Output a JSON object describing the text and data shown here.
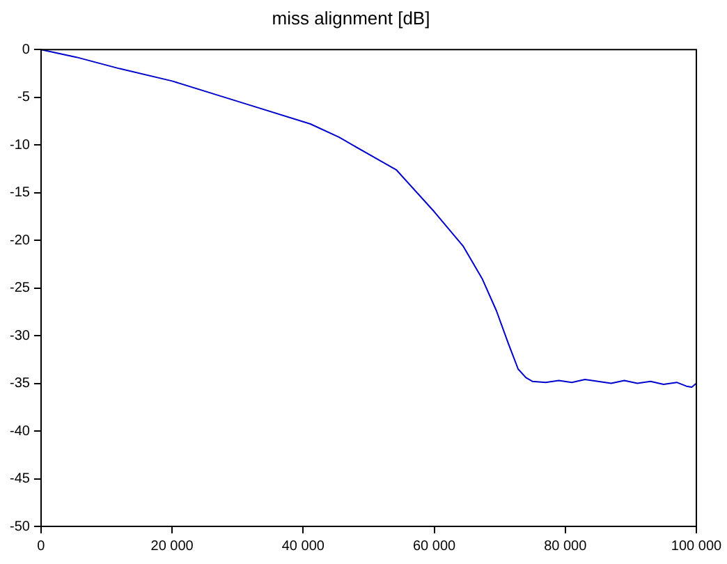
{
  "chart_data": {
    "type": "line",
    "title": "miss alignment [dB]",
    "x": [
      0,
      5400,
      12000,
      20000,
      30800,
      41100,
      45500,
      49800,
      54200,
      60000,
      64400,
      67300,
      69500,
      71300,
      72800,
      74000,
      75000,
      77000,
      79000,
      81000,
      83000,
      85000,
      87000,
      89000,
      91000,
      93000,
      95000,
      97000,
      98500,
      99300,
      100000
    ],
    "series": [
      {
        "color": "#0000cc",
        "values": [
          0,
          -0.8,
          -2.0,
          -3.3,
          -5.6,
          -7.8,
          -9.2,
          -10.9,
          -12.6,
          -17.0,
          -20.6,
          -24.0,
          -27.4,
          -30.8,
          -33.5,
          -34.4,
          -34.8,
          -34.9,
          -34.7,
          -34.9,
          -34.6,
          -34.8,
          -35.0,
          -34.7,
          -35.0,
          -34.8,
          -35.1,
          -34.9,
          -35.3,
          -35.4,
          -35.0
        ]
      }
    ],
    "xlim": [
      0,
      100000
    ],
    "xticks": [
      {
        "value": 0,
        "label": "0"
      },
      {
        "value": 20000,
        "label": "20 000"
      },
      {
        "value": 40000,
        "label": "40 000"
      },
      {
        "value": 60000,
        "label": "60 000"
      },
      {
        "value": 80000,
        "label": "80 000"
      },
      {
        "value": 100000,
        "label": "100 000"
      }
    ],
    "ylim": [
      -50,
      0
    ],
    "yticks": [
      -50,
      -45,
      -40,
      -35,
      -30,
      -25,
      -20,
      -15,
      -10,
      -5,
      0
    ],
    "grid": false,
    "legend": false,
    "marker": "none",
    "line_style": "solid"
  }
}
